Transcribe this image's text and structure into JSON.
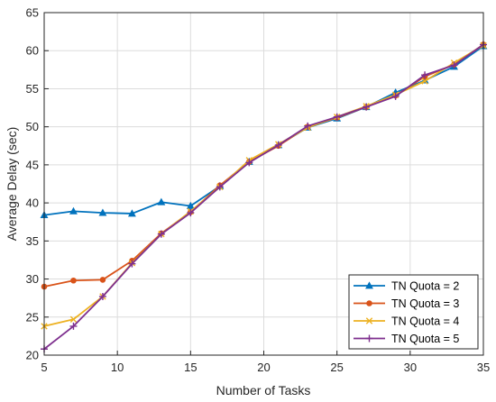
{
  "chart_data": {
    "type": "line",
    "xlabel": "Number of Tasks",
    "ylabel": "Average Delay (sec)",
    "xlim": [
      5,
      35
    ],
    "ylim": [
      20,
      65
    ],
    "xticks": [
      "5",
      "10",
      "15",
      "20",
      "25",
      "30",
      "35"
    ],
    "yticks": [
      "20",
      "25",
      "30",
      "35",
      "40",
      "45",
      "50",
      "55",
      "60",
      "65"
    ],
    "grid": true,
    "legend_position": "bottom-right",
    "x": [
      5,
      7,
      9,
      11,
      13,
      15,
      17,
      19,
      21,
      23,
      25,
      27,
      29,
      31,
      33,
      35
    ],
    "series": [
      {
        "name": "TN Quota = 2",
        "color": "#0072BD",
        "marker": "triangle",
        "values": [
          38.4,
          38.9,
          38.7,
          38.6,
          40.1,
          39.6,
          42.2,
          45.4,
          47.6,
          49.9,
          51.1,
          52.6,
          54.5,
          56.1,
          57.9,
          60.6
        ]
      },
      {
        "name": "TN Quota = 3",
        "color": "#D95319",
        "marker": "circle",
        "values": [
          29.0,
          29.8,
          29.9,
          32.4,
          36.0,
          38.8,
          42.3,
          45.4,
          47.5,
          50.0,
          51.2,
          52.6,
          54.1,
          56.6,
          58.2,
          60.8
        ]
      },
      {
        "name": "TN Quota = 4",
        "color": "#EDB120",
        "marker": "x",
        "values": [
          23.8,
          24.7,
          27.7,
          32.1,
          35.9,
          38.9,
          42.1,
          45.6,
          47.7,
          49.9,
          51.3,
          52.7,
          54.2,
          56.0,
          58.4,
          60.7
        ]
      },
      {
        "name": "TN Quota = 5",
        "color": "#7E2F8E",
        "marker": "plus",
        "values": [
          20.8,
          23.8,
          27.7,
          32.0,
          35.9,
          38.7,
          42.1,
          45.3,
          47.6,
          50.1,
          51.3,
          52.6,
          54.0,
          56.8,
          58.1,
          60.8
        ]
      }
    ]
  }
}
